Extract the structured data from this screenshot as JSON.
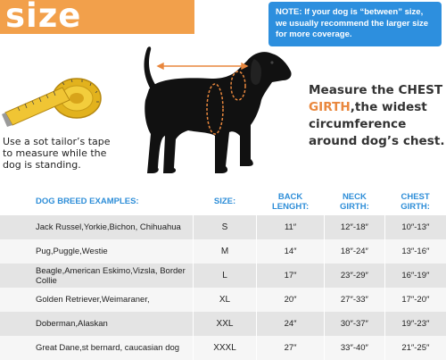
{
  "title": "size chart",
  "note": "NOTE: If your dog is “between” size, we usually recommend the larger size for more coverage.",
  "tape_caption": "Use a sot tailor’s tape to measure while the dog is standing.",
  "measure": {
    "before": "Measure the CHEST ",
    "accent": "GIRTH",
    "after": ",the widest circumference around dog’s chest."
  },
  "table": {
    "headers": {
      "breed": "DOG BREED EXAMPLES:",
      "size": "SIZE:",
      "back": "BACK LENGHT:",
      "neck": "NECK GIRTH:",
      "chest": "CHEST GIRTH:"
    },
    "rows": [
      {
        "breed": "Jack Russel,Yorkie,Bichon, Chihuahua",
        "size": "S",
        "back": "11″",
        "neck": "12″-18″",
        "chest": "10″-13″"
      },
      {
        "breed": "Pug,Puggle,Westie",
        "size": "M",
        "back": "14″",
        "neck": "18″-24″",
        "chest": "13″-16″"
      },
      {
        "breed": "Beagle,American Eskimo,Vizsla, Border Collie",
        "size": "L",
        "back": "17″",
        "neck": "23″-29″",
        "chest": "16″-19″"
      },
      {
        "breed": "Golden Retriever,Weimaraner,",
        "size": "XL",
        "back": "20″",
        "neck": "27″-33″",
        "chest": "17″-20″"
      },
      {
        "breed": "Doberman,Alaskan",
        "size": "XXL",
        "back": "24″",
        "neck": "30″-37″",
        "chest": "19″-23″"
      },
      {
        "breed": "Great Dane,st bernard, caucasian dog",
        "size": "XXXL",
        "back": "27″",
        "neck": "33″-40″",
        "chest": "21″-25″"
      }
    ]
  },
  "colors": {
    "banner": "#f2a04b",
    "note_bg": "#2d8fde",
    "header_text": "#2e8ed8",
    "accent": "#e9873d",
    "row_odd": "#e4e4e4",
    "row_even": "#f6f6f6"
  },
  "icons": [
    "tape-measure-icon",
    "dog-silhouette-icon"
  ]
}
